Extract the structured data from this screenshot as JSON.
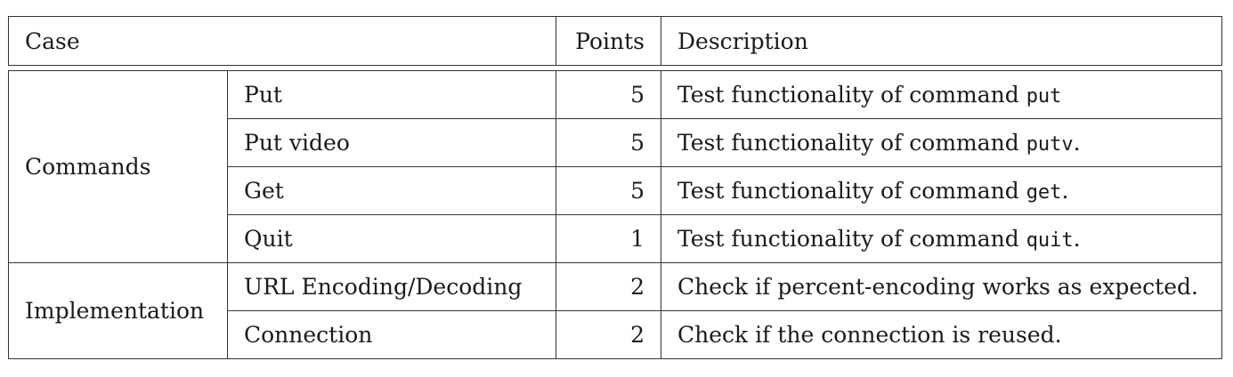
{
  "header": {
    "case": "Case",
    "points": "Points",
    "description": "Description"
  },
  "groups": [
    {
      "name": "Commands",
      "rows": [
        {
          "item": "Put",
          "points": "5",
          "desc_text": "Test functionality of command ",
          "desc_code": "put",
          "desc_tail": ""
        },
        {
          "item": "Put video",
          "points": "5",
          "desc_text": "Test functionality of command ",
          "desc_code": "putv",
          "desc_tail": "."
        },
        {
          "item": "Get",
          "points": "5",
          "desc_text": "Test functionality of command ",
          "desc_code": "get",
          "desc_tail": "."
        },
        {
          "item": "Quit",
          "points": "1",
          "desc_text": "Test functionality of command ",
          "desc_code": "quit",
          "desc_tail": "."
        }
      ]
    },
    {
      "name": "Implementation",
      "rows": [
        {
          "item": "URL Encoding/Decoding",
          "points": "2",
          "desc_text": "Check if percent-encoding works as expected.",
          "desc_code": "",
          "desc_tail": ""
        },
        {
          "item": "Connection",
          "points": "2",
          "desc_text": "Check if the connection is reused.",
          "desc_code": "",
          "desc_tail": ""
        }
      ]
    }
  ]
}
